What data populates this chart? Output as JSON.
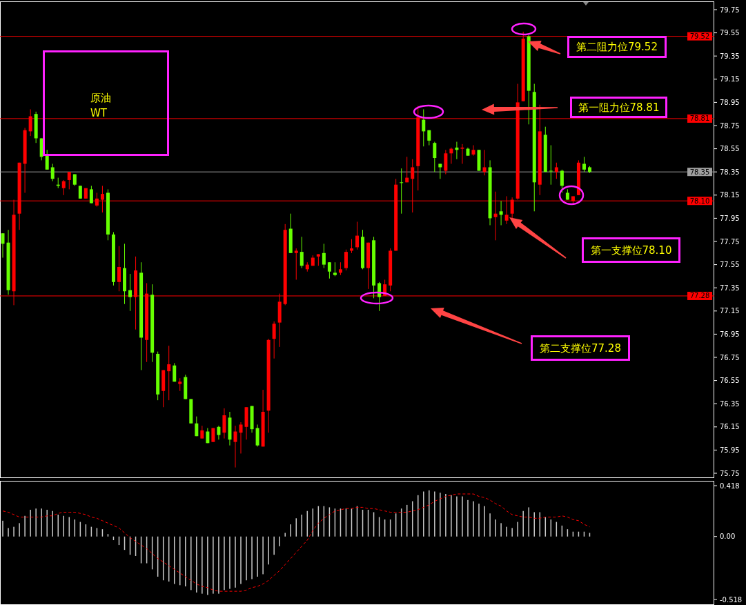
{
  "chart_data": [
    {
      "type": "candlestick",
      "title": "原油\nWT",
      "categories": [
        null,
        null,
        null,
        null,
        null,
        null,
        null,
        null,
        null,
        null,
        null,
        null,
        null,
        null,
        null,
        null,
        null,
        null,
        null,
        null,
        null,
        null,
        null,
        null,
        null,
        null,
        null,
        null,
        null,
        null,
        null,
        null,
        null,
        null,
        null,
        null,
        null,
        null,
        null,
        null,
        null,
        null,
        null,
        null,
        null,
        null,
        null,
        null,
        null,
        null,
        null,
        null,
        null,
        null,
        null,
        null,
        null,
        null,
        null,
        null,
        null,
        null,
        null,
        null,
        null,
        null,
        null,
        null,
        null,
        null,
        null,
        null,
        null,
        null,
        null,
        null,
        null,
        null,
        null,
        null,
        null,
        null,
        null,
        null,
        null,
        null,
        null,
        null,
        null,
        null,
        null,
        null,
        null,
        null,
        null,
        null,
        null,
        null,
        null,
        null,
        null,
        null,
        null,
        null,
        null,
        null,
        null,
        null,
        null,
        null,
        null,
        null,
        null,
        null,
        null,
        null,
        null,
        null,
        null,
        null,
        null,
        null,
        null,
        null,
        null,
        null,
        null,
        null,
        null
      ],
      "ohlc": [
        [
          77.82,
          77.82,
          77.61,
          77.73
        ],
        [
          77.74,
          77.85,
          77.29,
          77.33
        ],
        [
          77.32,
          78.11,
          77.2,
          77.98
        ],
        [
          77.99,
          78.43,
          77.85,
          78.43
        ],
        [
          78.42,
          78.73,
          78.17,
          78.71
        ],
        [
          78.7,
          78.89,
          78.66,
          78.83
        ],
        [
          78.85,
          78.87,
          78.6,
          78.64
        ],
        [
          78.64,
          78.64,
          78.45,
          78.48
        ],
        [
          78.49,
          78.54,
          78.37,
          78.37
        ],
        [
          78.39,
          78.42,
          78.27,
          78.29
        ],
        [
          78.24,
          78.3,
          78.21,
          78.23
        ],
        [
          78.21,
          78.28,
          78.15,
          78.27
        ],
        [
          78.28,
          78.35,
          78.2,
          78.35
        ],
        [
          78.33,
          78.33,
          78.23,
          78.24
        ],
        [
          78.23,
          78.23,
          78.12,
          78.12
        ],
        [
          78.12,
          78.21,
          78.12,
          78.21
        ],
        [
          78.2,
          78.23,
          78.08,
          78.08
        ],
        [
          78.06,
          78.17,
          78.05,
          78.12
        ],
        [
          78.11,
          78.23,
          78.0,
          78.16
        ],
        [
          78.17,
          78.2,
          77.76,
          77.81
        ],
        [
          77.81,
          77.83,
          77.37,
          77.4
        ],
        [
          77.4,
          77.71,
          77.32,
          77.53
        ],
        [
          77.52,
          77.73,
          77.21,
          77.32
        ],
        [
          77.33,
          77.47,
          77.15,
          77.27
        ],
        [
          77.27,
          77.62,
          76.99,
          77.5
        ],
        [
          77.48,
          77.57,
          76.64,
          76.92
        ],
        [
          76.9,
          77.39,
          76.71,
          77.3
        ],
        [
          77.29,
          77.38,
          76.71,
          76.79
        ],
        [
          76.78,
          76.8,
          76.38,
          76.43
        ],
        [
          76.46,
          76.64,
          76.32,
          76.64
        ],
        [
          76.63,
          76.85,
          76.38,
          76.69
        ],
        [
          76.68,
          76.7,
          76.54,
          76.54
        ],
        [
          76.52,
          76.57,
          76.46,
          76.54
        ],
        [
          76.58,
          76.6,
          76.39,
          76.39
        ],
        [
          76.39,
          76.39,
          76.18,
          76.18
        ],
        [
          76.18,
          76.24,
          76.07,
          76.07
        ],
        [
          76.05,
          76.16,
          76.05,
          76.12
        ],
        [
          76.11,
          76.14,
          76.01,
          76.01
        ],
        [
          76.02,
          76.14,
          76.02,
          76.14
        ],
        [
          76.15,
          76.16,
          76.04,
          76.08
        ],
        [
          76.1,
          76.31,
          76.05,
          76.25
        ],
        [
          76.23,
          76.28,
          75.99,
          76.04
        ],
        [
          76.02,
          76.16,
          75.8,
          76.11
        ],
        [
          76.1,
          76.19,
          75.92,
          76.17
        ],
        [
          76.15,
          76.32,
          76.04,
          76.32
        ],
        [
          76.33,
          76.33,
          76.1,
          76.13
        ],
        [
          76.14,
          76.17,
          75.98,
          75.99
        ],
        [
          75.98,
          76.47,
          75.98,
          76.28
        ],
        [
          76.29,
          76.91,
          76.1,
          76.9
        ],
        [
          76.91,
          77.06,
          76.74,
          77.04
        ],
        [
          77.05,
          77.3,
          76.84,
          77.23
        ],
        [
          77.21,
          77.9,
          77.2,
          77.85
        ],
        [
          77.86,
          77.99,
          77.65,
          77.65
        ],
        [
          77.65,
          77.69,
          77.42,
          77.67
        ],
        [
          77.66,
          77.79,
          77.52,
          77.54
        ],
        [
          77.51,
          77.57,
          77.49,
          77.55
        ],
        [
          77.54,
          77.63,
          77.54,
          77.61
        ],
        [
          77.62,
          77.64,
          77.54,
          77.64
        ],
        [
          77.65,
          77.73,
          77.52,
          77.55
        ],
        [
          77.57,
          77.57,
          77.43,
          77.49
        ],
        [
          77.48,
          77.57,
          77.45,
          77.46
        ],
        [
          77.48,
          77.57,
          77.46,
          77.51
        ],
        [
          77.52,
          77.68,
          77.5,
          77.66
        ],
        [
          77.67,
          77.77,
          77.65,
          77.69
        ],
        [
          77.7,
          77.92,
          77.68,
          77.8
        ],
        [
          77.79,
          77.85,
          77.51,
          77.52
        ],
        [
          77.52,
          77.74,
          77.34,
          77.74
        ],
        [
          77.76,
          77.79,
          77.26,
          77.37
        ],
        [
          77.39,
          77.4,
          77.15,
          77.27
        ],
        [
          77.28,
          77.42,
          77.28,
          77.38
        ],
        [
          77.37,
          77.69,
          77.32,
          77.67
        ],
        [
          77.67,
          78.29,
          77.67,
          78.24
        ],
        [
          78.26,
          78.38,
          77.99,
          78.26
        ],
        [
          78.26,
          78.48,
          78.26,
          78.3
        ],
        [
          78.29,
          78.46,
          78.0,
          78.39
        ],
        [
          78.4,
          78.92,
          78.19,
          78.82
        ],
        [
          78.8,
          78.89,
          78.57,
          78.7
        ],
        [
          78.71,
          78.71,
          78.58,
          78.62
        ],
        [
          78.6,
          78.61,
          78.35,
          78.47
        ],
        [
          78.42,
          78.42,
          78.29,
          78.39
        ],
        [
          78.36,
          78.54,
          78.33,
          78.51
        ],
        [
          78.51,
          78.56,
          78.42,
          78.55
        ],
        [
          78.56,
          78.61,
          78.46,
          78.54
        ],
        [
          78.55,
          78.59,
          78.42,
          78.56
        ],
        [
          78.55,
          78.56,
          78.49,
          78.49
        ],
        [
          78.5,
          78.58,
          78.49,
          78.54
        ],
        [
          78.54,
          78.54,
          78.36,
          78.36
        ],
        [
          78.35,
          78.54,
          78.32,
          78.39
        ],
        [
          78.39,
          78.45,
          77.89,
          77.95
        ],
        [
          77.96,
          78.18,
          77.76,
          77.99
        ],
        [
          78.01,
          78.1,
          77.89,
          77.98
        ],
        [
          77.93,
          78.14,
          77.9,
          77.98
        ],
        [
          77.99,
          78.13,
          77.95,
          78.11
        ],
        [
          78.12,
          79.11,
          78.11,
          78.95
        ],
        [
          78.96,
          79.56,
          78.96,
          79.5
        ],
        [
          79.52,
          79.53,
          78.76,
          79.05
        ],
        [
          79.04,
          79.11,
          78.01,
          78.26
        ],
        [
          78.24,
          78.93,
          78.15,
          78.7
        ],
        [
          78.67,
          78.74,
          78.35,
          78.35
        ],
        [
          78.36,
          78.58,
          78.24,
          78.36
        ],
        [
          78.35,
          78.43,
          78.29,
          78.39
        ],
        [
          78.36,
          78.37,
          78.17,
          78.23
        ],
        [
          78.17,
          78.2,
          78.11,
          78.11
        ],
        [
          78.1,
          78.14,
          78.07,
          78.14
        ],
        [
          78.15,
          78.45,
          78.15,
          78.43
        ],
        [
          78.42,
          78.48,
          78.35,
          78.37
        ],
        [
          78.39,
          78.4,
          78.34,
          78.35
        ],
        null,
        null,
        null,
        null,
        null,
        null,
        null,
        null,
        null,
        null,
        null,
        null,
        null,
        null,
        null,
        null,
        null,
        null,
        null,
        null,
        null,
        null
      ],
      "colors": [
        "#66ff00",
        "#66ff00",
        "#ff0000",
        "#ff0000",
        "#ff0000",
        "#ff0000",
        "#66ff00",
        "#66ff00",
        "#66ff00",
        "#66ff00",
        "#66ff00",
        "#ff0000",
        "#ff0000",
        "#66ff00",
        "#66ff00",
        "#ff0000",
        "#66ff00",
        "#ff0000",
        "#ff0000",
        "#66ff00",
        "#66ff00",
        "#ff0000",
        "#66ff00",
        "#66ff00",
        "#ff0000",
        "#66ff00",
        "#ff0000",
        "#66ff00",
        "#66ff00",
        "#ff0000",
        "#ff0000",
        "#66ff00",
        "#ff0000",
        "#66ff00",
        "#66ff00",
        "#66ff00",
        "#ff0000",
        "#66ff00",
        "#ff0000",
        "#66ff00",
        "#ff0000",
        "#66ff00",
        "#ff0000",
        "#ff0000",
        "#ff0000",
        "#66ff00",
        "#66ff00",
        "#ff0000",
        "#ff0000",
        "#ff0000",
        "#ff0000",
        "#ff0000",
        "#66ff00",
        "#ff0000",
        "#66ff00",
        "#ff0000",
        "#ff0000",
        "#ff0000",
        "#66ff00",
        "#66ff00",
        "#66ff00",
        "#ff0000",
        "#ff0000",
        "#ff0000",
        "#ff0000",
        "#66ff00",
        "#ff0000",
        "#66ff00",
        "#66ff00",
        "#ff0000",
        "#ff0000",
        "#ff0000",
        "#66ff00",
        "#ff0000",
        "#ff0000",
        "#ff0000",
        "#66ff00",
        "#66ff00",
        "#66ff00",
        "#66ff00",
        "#ff0000",
        "#ff0000",
        "#66ff00",
        "#ff0000",
        "#66ff00",
        "#ff0000",
        "#66ff00",
        "#ff0000",
        "#66ff00",
        "#ff0000",
        "#66ff00",
        "#ff0000",
        "#ff0000",
        "#ff0000",
        "#ff0000",
        "#66ff00",
        "#66ff00",
        "#ff0000",
        "#66ff00",
        "#66ff00",
        "#ff0000",
        "#66ff00",
        "#66ff00",
        "#ff0000",
        "#ff0000",
        "#66ff00",
        "#66ff00",
        null,
        null,
        null,
        null,
        null,
        null,
        null,
        null,
        null,
        null,
        null,
        null,
        null,
        null,
        null,
        null,
        null,
        null,
        null,
        null,
        null,
        null
      ],
      "ylim": [
        75.71,
        79.82
      ],
      "yticks": [
        75.75,
        75.95,
        76.15,
        76.35,
        76.55,
        76.75,
        76.95,
        77.15,
        77.35,
        77.55,
        77.75,
        77.95,
        78.15,
        78.35,
        78.55,
        78.75,
        78.95,
        79.15,
        79.35,
        79.55,
        79.75
      ],
      "tick_labels": "y",
      "ref_lines": [
        {
          "axis": "y",
          "value": 79.52,
          "label": "79.52",
          "color": "#ff0000"
        },
        {
          "axis": "y",
          "value": 78.81,
          "label": "78.81",
          "color": "#ff0000"
        },
        {
          "axis": "y",
          "value": 78.35,
          "label": "78.35",
          "color": "#a0a0a0"
        },
        {
          "axis": "y",
          "value": 78.1,
          "label": "78.10",
          "color": "#ff0000"
        },
        {
          "axis": "y",
          "value": 77.28,
          "label": "77.28",
          "color": "#ff0000"
        }
      ],
      "annotations": [
        "第二阻力位79.52",
        "第一阻力位78.81",
        "第一支撑位78.10",
        "第二支撑位77.28"
      ]
    },
    {
      "type": "bar",
      "categories": [
        null,
        null,
        null,
        null,
        null,
        null,
        null,
        null,
        null,
        null,
        null,
        null,
        null,
        null,
        null,
        null,
        null,
        null,
        null,
        null,
        null,
        null,
        null,
        null,
        null,
        null,
        null,
        null,
        null,
        null,
        null,
        null,
        null,
        null,
        null,
        null,
        null,
        null,
        null,
        null,
        null,
        null,
        null,
        null,
        null,
        null,
        null,
        null,
        null,
        null,
        null,
        null,
        null,
        null,
        null,
        null,
        null,
        null,
        null,
        null,
        null,
        null,
        null,
        null,
        null,
        null,
        null,
        null,
        null,
        null,
        null,
        null,
        null,
        null,
        null,
        null,
        null,
        null,
        null,
        null,
        null,
        null,
        null,
        null,
        null,
        null,
        null,
        null,
        null,
        null,
        null,
        null,
        null,
        null,
        null,
        null,
        null,
        null,
        null,
        null,
        null,
        null,
        null,
        null,
        null,
        null,
        null,
        null,
        null,
        null,
        null,
        null,
        null,
        null,
        null,
        null,
        null,
        null,
        null,
        null,
        null,
        null,
        null,
        null,
        null,
        null,
        null,
        null,
        null
      ],
      "series": [
        {
          "type": "bar",
          "color": "#c8c8c8",
          "values": [
            0.13,
            0.07,
            0.08,
            0.11,
            0.17,
            0.22,
            0.23,
            0.23,
            0.22,
            0.21,
            0.18,
            0.17,
            0.16,
            0.14,
            0.12,
            0.1,
            0.08,
            0.07,
            0.06,
            0.02,
            -0.03,
            -0.07,
            -0.11,
            -0.15,
            -0.16,
            -0.22,
            -0.22,
            -0.27,
            -0.33,
            -0.36,
            -0.37,
            -0.39,
            -0.4,
            -0.41,
            -0.44,
            -0.46,
            -0.47,
            -0.48,
            -0.47,
            -0.47,
            -0.44,
            -0.43,
            -0.42,
            -0.39,
            -0.36,
            -0.35,
            -0.33,
            -0.31,
            -0.23,
            -0.15,
            -0.08,
            0.03,
            0.1,
            0.15,
            0.18,
            0.21,
            0.23,
            0.25,
            0.25,
            0.24,
            0.23,
            0.23,
            0.23,
            0.23,
            0.25,
            0.22,
            0.22,
            0.2,
            0.16,
            0.14,
            0.14,
            0.19,
            0.23,
            0.26,
            0.29,
            0.34,
            0.37,
            0.38,
            0.37,
            0.36,
            0.35,
            0.34,
            0.33,
            0.33,
            0.3,
            0.29,
            0.27,
            0.25,
            0.19,
            0.14,
            0.11,
            0.08,
            0.07,
            0.12,
            0.21,
            0.24,
            0.2,
            0.2,
            0.16,
            0.14,
            0.12,
            0.09,
            0.06,
            0.04,
            0.04,
            0.04,
            0.03,
            null,
            null,
            null,
            null,
            null,
            null,
            null,
            null,
            null,
            null,
            null,
            null,
            null,
            null,
            null,
            null,
            null,
            null,
            null,
            null,
            null,
            null
          ]
        },
        {
          "type": "line",
          "color": "#ff0000",
          "values": [
            0.21,
            0.2,
            0.18,
            0.16,
            0.16,
            0.16,
            0.16,
            0.16,
            0.17,
            0.17,
            0.19,
            0.2,
            0.2,
            0.2,
            0.19,
            0.18,
            0.16,
            0.15,
            0.13,
            0.11,
            0.09,
            0.07,
            0.03,
            -0.01,
            -0.04,
            -0.07,
            -0.1,
            -0.14,
            -0.18,
            -0.21,
            -0.24,
            -0.27,
            -0.3,
            -0.33,
            -0.36,
            -0.39,
            -0.41,
            -0.42,
            -0.44,
            -0.45,
            -0.45,
            -0.45,
            -0.45,
            -0.45,
            -0.44,
            -0.42,
            -0.41,
            -0.39,
            -0.36,
            -0.32,
            -0.28,
            -0.23,
            -0.18,
            -0.13,
            -0.08,
            -0.03,
            0.05,
            0.11,
            0.15,
            0.18,
            0.21,
            0.22,
            0.23,
            0.23,
            0.24,
            0.24,
            0.23,
            0.23,
            0.22,
            0.21,
            0.2,
            0.2,
            0.2,
            0.2,
            0.21,
            0.22,
            0.24,
            0.26,
            0.29,
            0.31,
            0.33,
            0.34,
            0.35,
            0.35,
            0.35,
            0.35,
            0.33,
            0.32,
            0.3,
            0.27,
            0.25,
            0.21,
            0.18,
            0.17,
            0.16,
            0.16,
            0.15,
            0.15,
            0.16,
            0.16,
            0.16,
            0.17,
            0.16,
            0.14,
            0.13,
            0.1,
            0.08,
            null,
            null,
            null,
            null,
            null,
            null,
            null,
            null,
            null,
            null,
            null,
            null,
            null,
            null,
            null,
            null,
            null,
            null,
            null,
            null,
            null,
            null
          ]
        }
      ],
      "line_style": "dashed",
      "ylim": [
        -0.56,
        0.455
      ],
      "yticks": [
        0.418,
        {
          "value": 0,
          "label": "0.00"
        },
        -0.518
      ],
      "tick_labels": "y"
    }
  ]
}
